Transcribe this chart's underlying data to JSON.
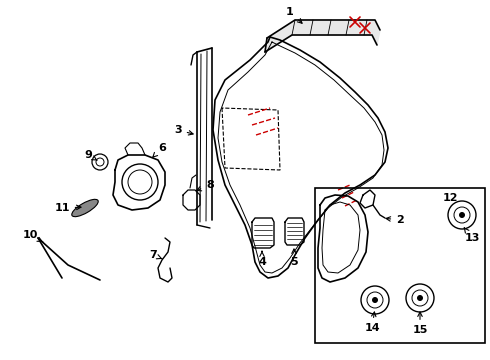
{
  "bg_color": "#ffffff",
  "line_color": "#000000",
  "red_color": "#cc0000",
  "figsize": [
    4.9,
    3.6
  ],
  "dpi": 100
}
